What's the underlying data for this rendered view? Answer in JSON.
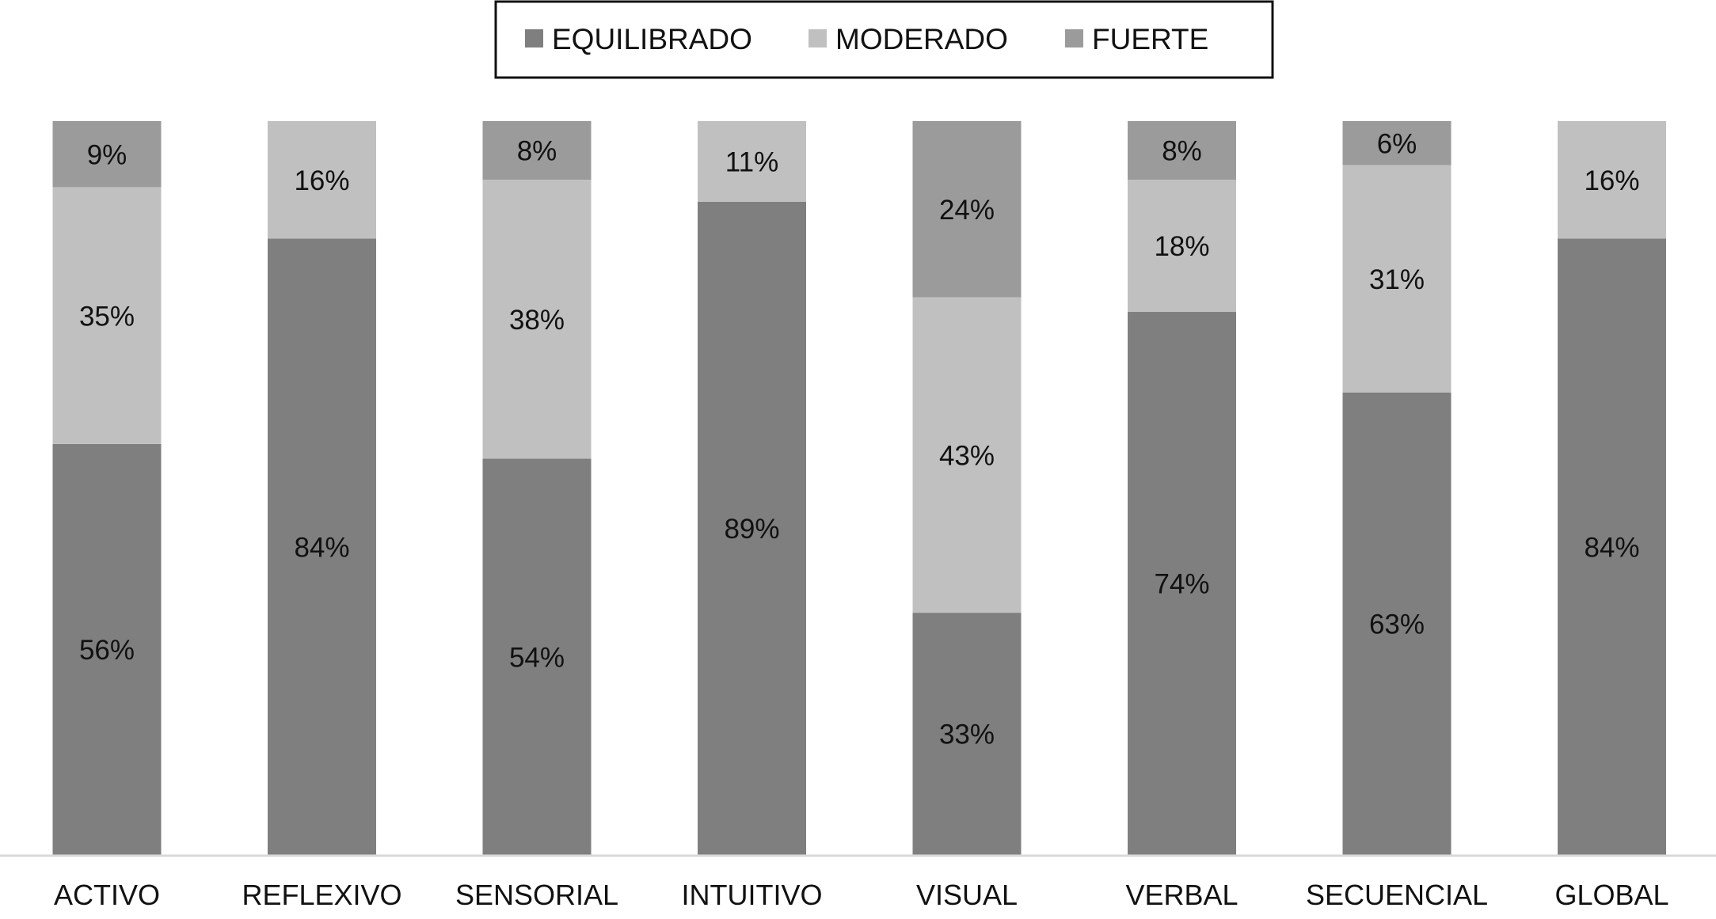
{
  "chart_data": {
    "type": "bar",
    "stacked": true,
    "percent_stacked": true,
    "title": "",
    "xlabel": "",
    "ylabel": "",
    "ylim": [
      0,
      100
    ],
    "grid": false,
    "legend_position": "top-center",
    "categories": [
      "ACTIVO",
      "REFLEXIVO",
      "SENSORIAL",
      "INTUITIVO",
      "VISUAL",
      "VERBAL",
      "SECUENCIAL",
      "GLOBAL"
    ],
    "series": [
      {
        "name": "EQUILIBRADO",
        "color": "#7f7f7f",
        "values": [
          56,
          84,
          54,
          89,
          33,
          74,
          63,
          84
        ],
        "labels": [
          "56%",
          "84%",
          "54%",
          "89%",
          "33%",
          "74%",
          "63%",
          "84%"
        ]
      },
      {
        "name": "MODERADO",
        "color": "#c0c0c0",
        "values": [
          35,
          16,
          38,
          11,
          43,
          18,
          31,
          16
        ],
        "labels": [
          "35%",
          "16%",
          "38%",
          "11%",
          "43%",
          "18%",
          "31%",
          "16%"
        ]
      },
      {
        "name": "FUERTE",
        "color": "#9b9b9b",
        "values": [
          9,
          0,
          8,
          0,
          24,
          8,
          6,
          0
        ],
        "labels": [
          "9%",
          "",
          "8%",
          "",
          "24%",
          "8%",
          "6%",
          ""
        ]
      }
    ],
    "axis_color": "#d9d9d9",
    "text_color": "#111111"
  }
}
